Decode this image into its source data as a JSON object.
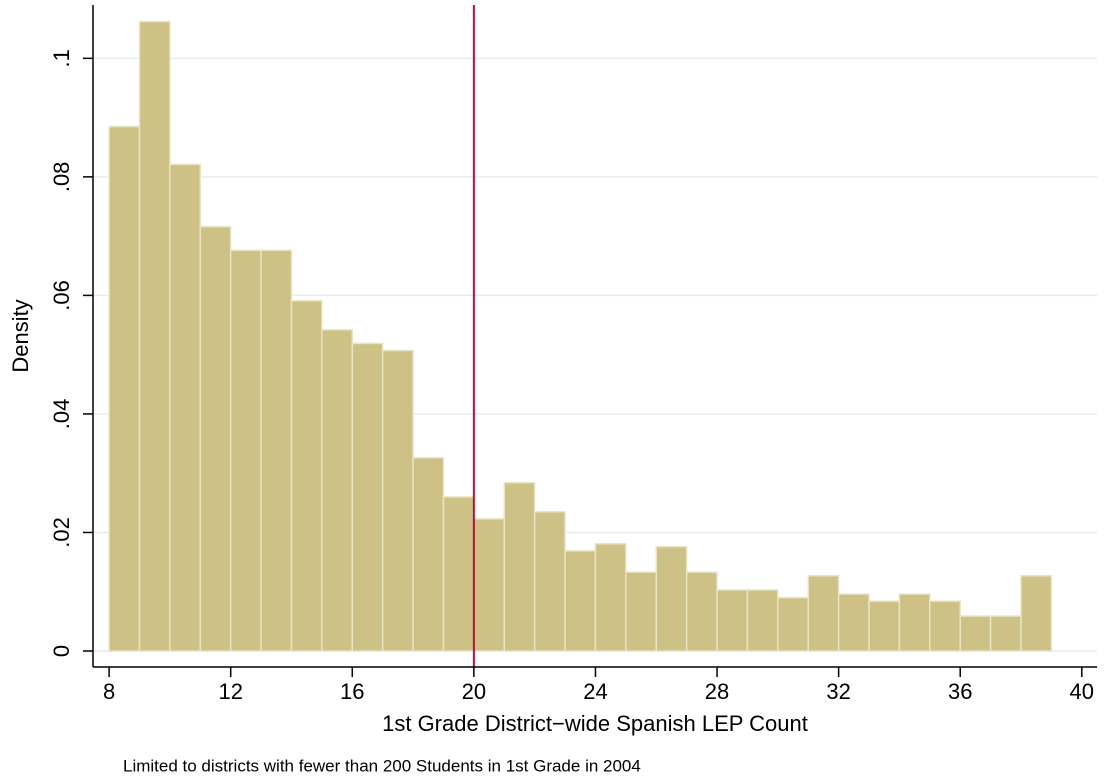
{
  "chart_data": {
    "type": "histogram",
    "xlabel": "1st Grade District−wide Spanish LEP Count",
    "ylabel": "Density",
    "note": "Limited to districts with fewer than 200 Students in 1st Grade in 2004",
    "bins": [
      8,
      9,
      10,
      11,
      12,
      13,
      14,
      15,
      16,
      17,
      18,
      19,
      20,
      21,
      22,
      23,
      24,
      25,
      26,
      27,
      28,
      29,
      30,
      31,
      32,
      33,
      34,
      35,
      36,
      37,
      38,
      39
    ],
    "values": [
      0.0885,
      0.1062,
      0.0821,
      0.0716,
      0.0676,
      0.0676,
      0.0591,
      0.0542,
      0.0519,
      0.0507,
      0.0326,
      0.026,
      0.0223,
      0.0284,
      0.0235,
      0.0169,
      0.0181,
      0.0133,
      0.0176,
      0.0133,
      0.0103,
      0.0103,
      0.009,
      0.0127,
      0.0096,
      0.0084,
      0.0096,
      0.0084,
      0.0059,
      0.0059,
      0.0127
    ],
    "color": "#cdc185",
    "vline": 20,
    "vline_color": "#b5123f",
    "xlim": [
      7.47,
      40.5
    ],
    "ylim": [
      -0.0027,
      0.109
    ],
    "xticks": [
      8,
      12,
      16,
      20,
      24,
      28,
      32,
      36,
      40
    ],
    "yticks": [
      0,
      {
        "value": 0.02,
        "label": ".02"
      },
      {
        "value": 0.04,
        "label": ".04"
      },
      {
        "value": 0.06,
        "label": ".06"
      },
      {
        "value": 0.08,
        "label": ".08"
      },
      {
        "value": 0.1,
        "label": ".1"
      }
    ],
    "grid": true
  }
}
